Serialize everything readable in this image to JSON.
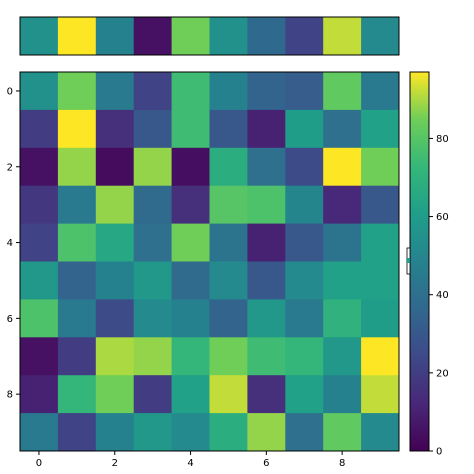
{
  "chart_data": [
    {
      "type": "heatmap",
      "title": "",
      "colormap": "viridis",
      "rows": 1,
      "cols": 10,
      "values": [
        [
          55,
          97,
          48,
          5,
          85,
          55,
          37,
          22,
          92,
          52
        ]
      ]
    },
    {
      "type": "heatmap",
      "title": "",
      "colormap": "viridis",
      "rows": 10,
      "cols": 10,
      "x_ticks": [
        "0",
        "2",
        "4",
        "6",
        "8"
      ],
      "y_ticks": [
        "0",
        "2",
        "4",
        "6",
        "8"
      ],
      "values": [
        [
          55,
          85,
          45,
          22,
          75,
          48,
          35,
          32,
          82,
          45
        ],
        [
          20,
          98,
          15,
          30,
          75,
          30,
          10,
          60,
          40,
          62
        ],
        [
          5,
          88,
          3,
          88,
          4,
          68,
          40,
          25,
          97,
          85
        ],
        [
          18,
          45,
          88,
          38,
          15,
          80,
          78,
          50,
          12,
          30
        ],
        [
          22,
          78,
          65,
          40,
          85,
          42,
          10,
          30,
          42,
          62
        ],
        [
          58,
          35,
          48,
          58,
          38,
          52,
          30,
          52,
          62,
          62
        ],
        [
          78,
          45,
          25,
          52,
          48,
          35,
          58,
          45,
          70,
          60
        ],
        [
          5,
          20,
          90,
          88,
          72,
          85,
          75,
          72,
          58,
          97
        ],
        [
          10,
          72,
          85,
          20,
          62,
          92,
          15,
          62,
          48,
          92
        ],
        [
          45,
          22,
          48,
          58,
          52,
          68,
          88,
          40,
          82,
          52
        ]
      ]
    },
    {
      "type": "colorbar",
      "colormap": "viridis",
      "vmin": 0,
      "vmax": 97,
      "ticks": [
        "0",
        "20",
        "40",
        "60",
        "80"
      ]
    }
  ]
}
